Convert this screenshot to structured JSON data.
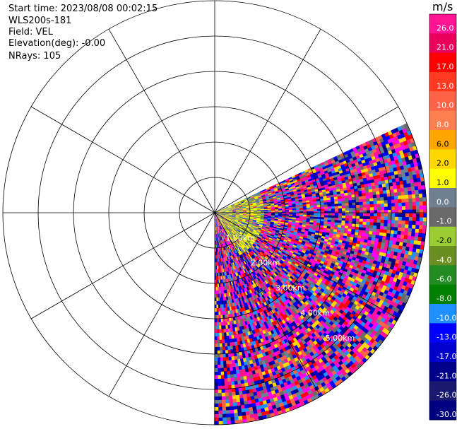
{
  "header": {
    "start_time": "Start time: 2023/08/08 00:02:15",
    "instrument": "WLS200s-181",
    "field": "Field: VEL",
    "elevation": "Elevation(deg): -0.00",
    "nrays": "NRays: 105"
  },
  "chart_data": {
    "type": "ppi",
    "field": "VEL",
    "units": "m/s",
    "max_range_km": 6,
    "range_rings_km": [
      1,
      2,
      3,
      4,
      5,
      6
    ],
    "ring_labels": [
      "1.00km",
      "2.00km",
      "3.00km",
      "4.00km",
      "5.00km"
    ],
    "ring_label_azimuth_deg": 135,
    "radial_spokes_deg": [
      0,
      30,
      60,
      90,
      120,
      150,
      180,
      210,
      240,
      270,
      300,
      330
    ],
    "sector_azimuth_deg": [
      65,
      180
    ],
    "colorbar": {
      "label": "m/s",
      "min": -30.0,
      "max": 30.0,
      "ticks": [
        26.0,
        21.0,
        17.0,
        13.0,
        10.0,
        8.0,
        6.0,
        2.0,
        1.0,
        0.0,
        -1.0,
        -2.0,
        -4.0,
        -6.0,
        -8.0,
        -10.0,
        -13.0,
        -17.0,
        -21.0,
        -26.0,
        -30.0
      ],
      "tick_labels": [
        "26.0",
        "21.0",
        "17.0",
        "13.0",
        "10.0",
        "8.0",
        "6.0",
        "2.0",
        "1.0",
        "0.0",
        "-1.0",
        "-2.0",
        "-4.0",
        "-6.0",
        "-8.0",
        "-10.0",
        "-13.0",
        "-17.0",
        "-21.0",
        "-26.0",
        "-30.0"
      ],
      "colors": [
        "#ff1493",
        "#e8005a",
        "#ff0000",
        "#ff3a20",
        "#ff6347",
        "#ff7f50",
        "#ffa500",
        "#ffd700",
        "#ffff00",
        "#708090",
        "#696969",
        "#9acd32",
        "#6b8e23",
        "#228b22",
        "#008000",
        "#1e90ff",
        "#0000ff",
        "#0000cd",
        "#00008b",
        "#191970",
        "#000080"
      ]
    }
  }
}
